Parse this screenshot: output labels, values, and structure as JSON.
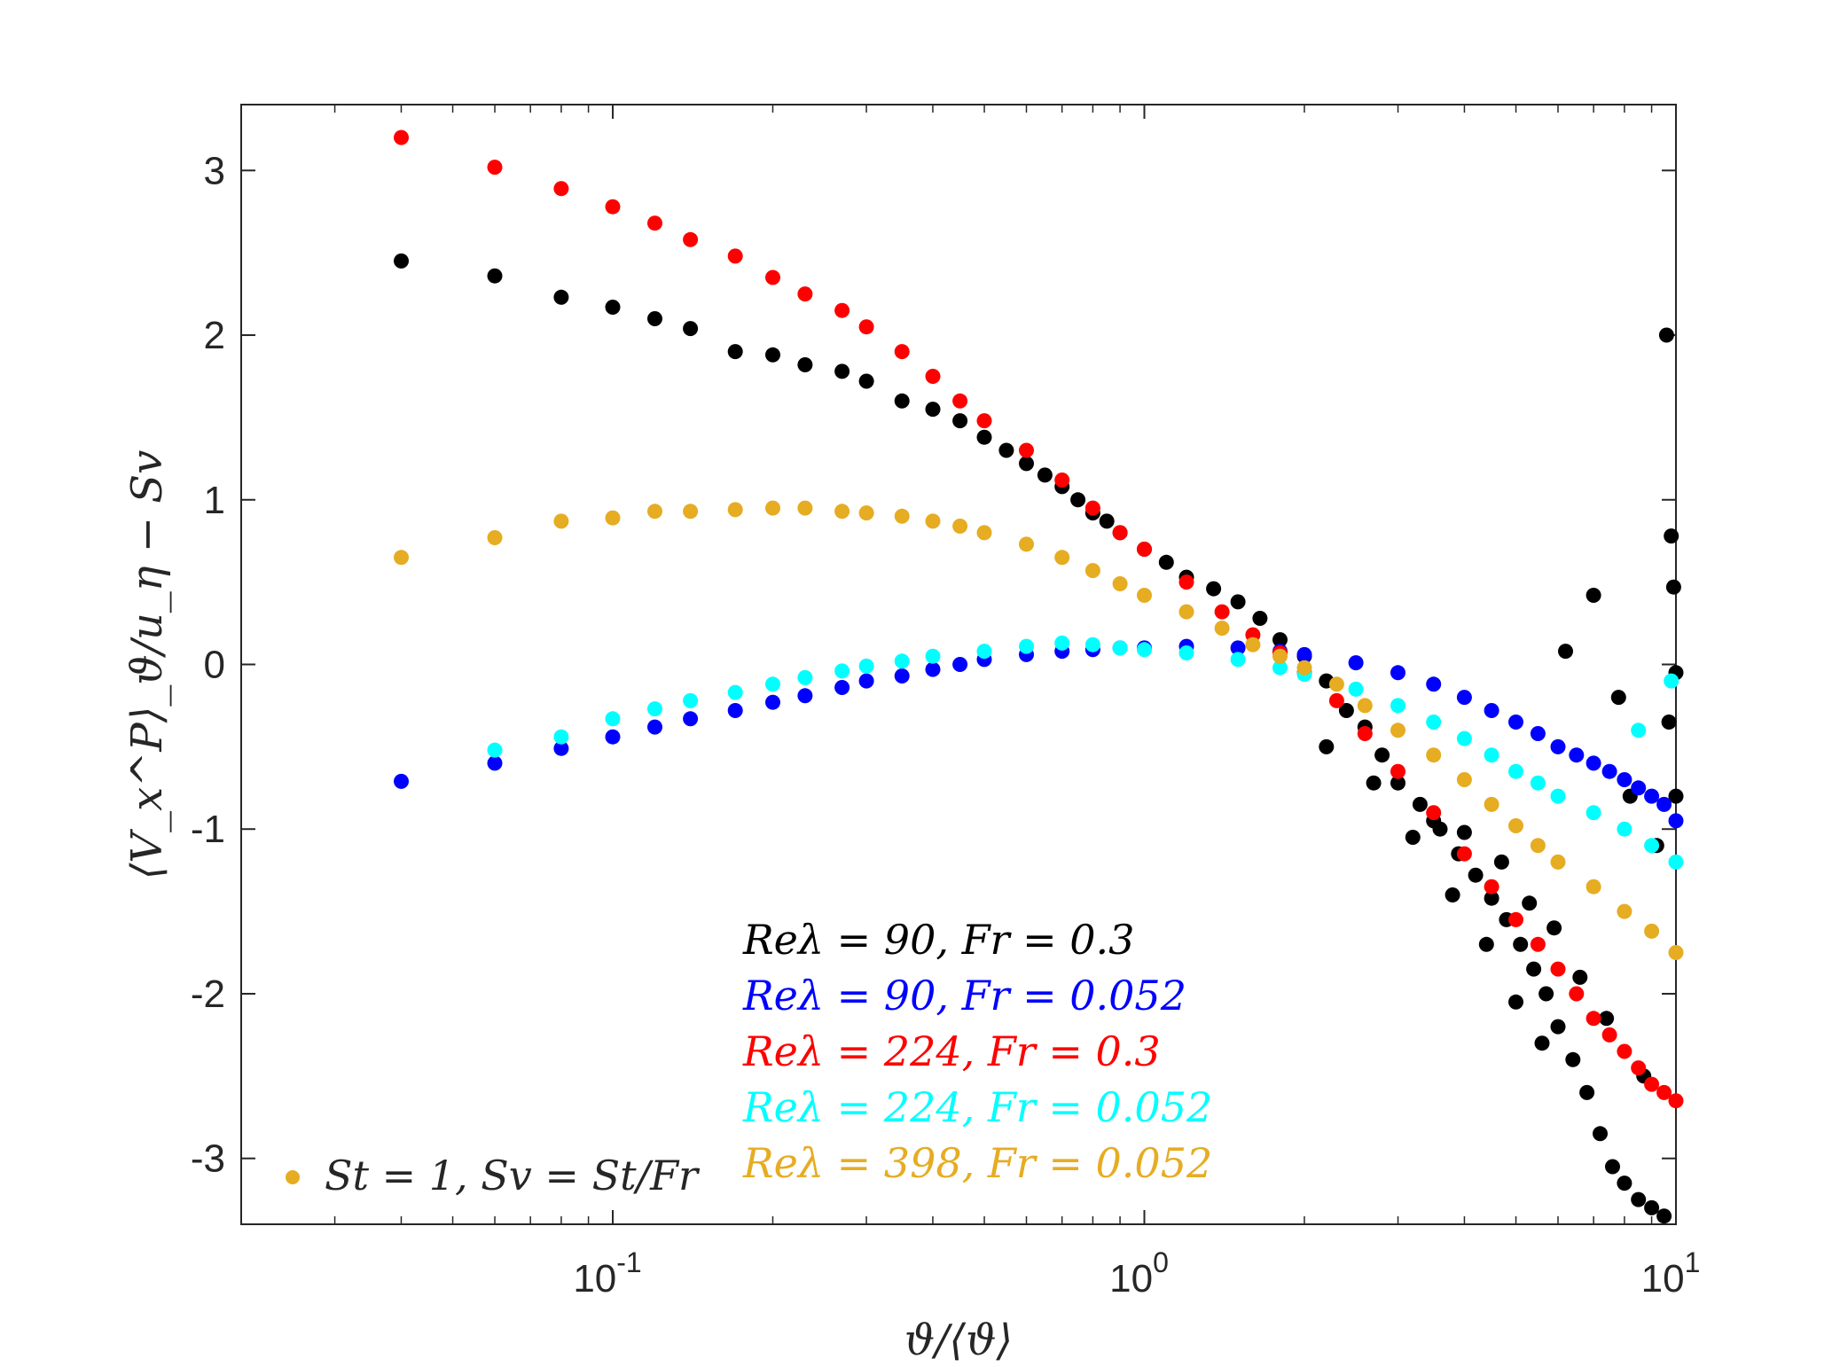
{
  "chart_data": {
    "type": "scatter",
    "xscale": "log",
    "xlim": [
      0.02,
      10
    ],
    "ylim": [
      -3.4,
      3.4
    ],
    "xticks": [
      {
        "value": 0.1,
        "label": "10",
        "exp": "-1"
      },
      {
        "value": 1,
        "label": "10",
        "exp": "0"
      },
      {
        "value": 10,
        "label": "10",
        "exp": "1"
      }
    ],
    "yticks": [
      {
        "value": 3,
        "label": "3"
      },
      {
        "value": 2,
        "label": "2"
      },
      {
        "value": 1,
        "label": "1"
      },
      {
        "value": 0,
        "label": "0"
      },
      {
        "value": -1,
        "label": "-1"
      },
      {
        "value": -2,
        "label": "-2"
      },
      {
        "value": -3,
        "label": "-3"
      }
    ],
    "xlabel": "ϑ/⟨ϑ⟩",
    "ylabel": "⟨V_x^P⟩_ϑ/u_η − Sv",
    "grid": false,
    "legend_placement": "bottom-right",
    "note": "St = 1, Sv = St/Fr",
    "note_color": "#E6AC22",
    "series": [
      {
        "name": "Reλ = 90, Fr = 0.3",
        "color": "#000000",
        "points": [
          [
            0.04,
            2.45
          ],
          [
            0.06,
            2.36
          ],
          [
            0.08,
            2.23
          ],
          [
            0.1,
            2.17
          ],
          [
            0.12,
            2.1
          ],
          [
            0.14,
            2.04
          ],
          [
            0.17,
            1.9
          ],
          [
            0.2,
            1.88
          ],
          [
            0.23,
            1.82
          ],
          [
            0.27,
            1.78
          ],
          [
            0.3,
            1.72
          ],
          [
            0.35,
            1.6
          ],
          [
            0.4,
            1.55
          ],
          [
            0.45,
            1.48
          ],
          [
            0.5,
            1.38
          ],
          [
            0.55,
            1.3
          ],
          [
            0.6,
            1.22
          ],
          [
            0.65,
            1.15
          ],
          [
            0.7,
            1.08
          ],
          [
            0.75,
            1.0
          ],
          [
            0.8,
            0.92
          ],
          [
            0.85,
            0.87
          ],
          [
            0.9,
            0.8
          ],
          [
            1.0,
            0.7
          ],
          [
            1.1,
            0.62
          ],
          [
            1.2,
            0.53
          ],
          [
            1.35,
            0.46
          ],
          [
            1.5,
            0.38
          ],
          [
            1.65,
            0.28
          ],
          [
            1.8,
            0.15
          ],
          [
            2.0,
            0.05
          ],
          [
            2.2,
            -0.1
          ],
          [
            2.4,
            -0.28
          ],
          [
            2.6,
            -0.38
          ],
          [
            2.8,
            -0.55
          ],
          [
            3.0,
            -0.72
          ],
          [
            3.3,
            -0.85
          ],
          [
            3.6,
            -1.0
          ],
          [
            3.9,
            -1.15
          ],
          [
            4.2,
            -1.28
          ],
          [
            4.5,
            -1.42
          ],
          [
            4.8,
            -1.55
          ],
          [
            5.1,
            -1.7
          ],
          [
            5.4,
            -1.85
          ],
          [
            5.7,
            -2.0
          ],
          [
            6.0,
            -2.2
          ],
          [
            6.4,
            -2.4
          ],
          [
            6.8,
            -2.6
          ],
          [
            7.2,
            -2.85
          ],
          [
            7.6,
            -3.05
          ],
          [
            8.0,
            -3.15
          ],
          [
            8.5,
            -3.25
          ],
          [
            9.0,
            -3.3
          ],
          [
            9.5,
            -3.35
          ],
          [
            9.6,
            2.0
          ],
          [
            9.8,
            0.78
          ],
          [
            2.2,
            -0.5
          ],
          [
            2.7,
            -0.72
          ],
          [
            3.2,
            -1.05
          ],
          [
            3.5,
            -0.95
          ],
          [
            3.8,
            -1.4
          ],
          [
            4.0,
            -1.02
          ],
          [
            4.4,
            -1.7
          ],
          [
            4.7,
            -1.2
          ],
          [
            5.0,
            -2.05
          ],
          [
            5.3,
            -1.45
          ],
          [
            5.6,
            -2.3
          ],
          [
            5.9,
            -1.6
          ],
          [
            6.2,
            0.08
          ],
          [
            6.6,
            -1.9
          ],
          [
            7.0,
            0.42
          ],
          [
            7.4,
            -2.15
          ],
          [
            7.8,
            -0.2
          ],
          [
            8.2,
            -0.8
          ],
          [
            8.7,
            -2.5
          ],
          [
            9.2,
            -1.1
          ],
          [
            9.7,
            -0.35
          ],
          [
            10.0,
            -0.05
          ],
          [
            10.0,
            -0.8
          ],
          [
            9.9,
            0.47
          ]
        ]
      },
      {
        "name": "Reλ = 90, Fr = 0.052",
        "color": "#0000FF",
        "points": [
          [
            0.04,
            -0.71
          ],
          [
            0.06,
            -0.6
          ],
          [
            0.08,
            -0.51
          ],
          [
            0.1,
            -0.44
          ],
          [
            0.12,
            -0.38
          ],
          [
            0.14,
            -0.33
          ],
          [
            0.17,
            -0.28
          ],
          [
            0.2,
            -0.23
          ],
          [
            0.23,
            -0.19
          ],
          [
            0.27,
            -0.14
          ],
          [
            0.3,
            -0.1
          ],
          [
            0.35,
            -0.07
          ],
          [
            0.4,
            -0.03
          ],
          [
            0.45,
            0.0
          ],
          [
            0.5,
            0.03
          ],
          [
            0.6,
            0.06
          ],
          [
            0.7,
            0.08
          ],
          [
            0.8,
            0.09
          ],
          [
            0.9,
            0.1
          ],
          [
            1.0,
            0.1
          ],
          [
            1.2,
            0.11
          ],
          [
            1.5,
            0.1
          ],
          [
            1.8,
            0.08
          ],
          [
            2.0,
            0.06
          ],
          [
            2.5,
            0.01
          ],
          [
            3.0,
            -0.05
          ],
          [
            3.5,
            -0.12
          ],
          [
            4.0,
            -0.2
          ],
          [
            4.5,
            -0.28
          ],
          [
            5.0,
            -0.35
          ],
          [
            5.5,
            -0.42
          ],
          [
            6.0,
            -0.5
          ],
          [
            6.5,
            -0.55
          ],
          [
            7.0,
            -0.6
          ],
          [
            7.5,
            -0.65
          ],
          [
            8.0,
            -0.7
          ],
          [
            8.5,
            -0.75
          ],
          [
            9.0,
            -0.8
          ],
          [
            9.5,
            -0.85
          ],
          [
            10.0,
            -0.95
          ]
        ]
      },
      {
        "name": "Reλ = 224, Fr = 0.3",
        "color": "#FF0000",
        "points": [
          [
            0.04,
            3.2
          ],
          [
            0.06,
            3.02
          ],
          [
            0.08,
            2.89
          ],
          [
            0.1,
            2.78
          ],
          [
            0.12,
            2.68
          ],
          [
            0.14,
            2.58
          ],
          [
            0.17,
            2.48
          ],
          [
            0.2,
            2.35
          ],
          [
            0.23,
            2.25
          ],
          [
            0.27,
            2.15
          ],
          [
            0.3,
            2.05
          ],
          [
            0.35,
            1.9
          ],
          [
            0.4,
            1.75
          ],
          [
            0.45,
            1.6
          ],
          [
            0.5,
            1.48
          ],
          [
            0.6,
            1.3
          ],
          [
            0.7,
            1.12
          ],
          [
            0.8,
            0.95
          ],
          [
            0.9,
            0.8
          ],
          [
            1.0,
            0.7
          ],
          [
            1.2,
            0.5
          ],
          [
            1.4,
            0.32
          ],
          [
            1.6,
            0.18
          ],
          [
            1.8,
            0.07
          ],
          [
            2.0,
            -0.05
          ],
          [
            2.3,
            -0.22
          ],
          [
            2.6,
            -0.42
          ],
          [
            3.0,
            -0.65
          ],
          [
            3.5,
            -0.9
          ],
          [
            4.0,
            -1.15
          ],
          [
            4.5,
            -1.35
          ],
          [
            5.0,
            -1.55
          ],
          [
            5.5,
            -1.7
          ],
          [
            6.0,
            -1.85
          ],
          [
            6.5,
            -2.0
          ],
          [
            7.0,
            -2.15
          ],
          [
            7.5,
            -2.25
          ],
          [
            8.0,
            -2.35
          ],
          [
            8.5,
            -2.45
          ],
          [
            9.0,
            -2.55
          ],
          [
            9.5,
            -2.6
          ],
          [
            10.0,
            -2.65
          ]
        ]
      },
      {
        "name": "Reλ = 224, Fr = 0.052",
        "color": "#00FFFF",
        "points": [
          [
            0.06,
            -0.52
          ],
          [
            0.08,
            -0.44
          ],
          [
            0.1,
            -0.33
          ],
          [
            0.12,
            -0.27
          ],
          [
            0.14,
            -0.22
          ],
          [
            0.17,
            -0.17
          ],
          [
            0.2,
            -0.12
          ],
          [
            0.23,
            -0.08
          ],
          [
            0.27,
            -0.04
          ],
          [
            0.3,
            -0.01
          ],
          [
            0.35,
            0.02
          ],
          [
            0.4,
            0.05
          ],
          [
            0.5,
            0.08
          ],
          [
            0.6,
            0.11
          ],
          [
            0.7,
            0.13
          ],
          [
            0.8,
            0.12
          ],
          [
            0.9,
            0.1
          ],
          [
            1.0,
            0.09
          ],
          [
            1.2,
            0.07
          ],
          [
            1.5,
            0.03
          ],
          [
            1.8,
            -0.02
          ],
          [
            2.0,
            -0.06
          ],
          [
            2.5,
            -0.15
          ],
          [
            3.0,
            -0.25
          ],
          [
            3.5,
            -0.35
          ],
          [
            4.0,
            -0.45
          ],
          [
            4.5,
            -0.55
          ],
          [
            5.0,
            -0.65
          ],
          [
            5.5,
            -0.72
          ],
          [
            6.0,
            -0.8
          ],
          [
            7.0,
            -0.9
          ],
          [
            8.0,
            -1.0
          ],
          [
            9.0,
            -1.1
          ],
          [
            10.0,
            -1.2
          ],
          [
            9.8,
            -0.1
          ],
          [
            8.5,
            -0.4
          ]
        ]
      },
      {
        "name": "Reλ = 398, Fr = 0.052",
        "color": "#E6AC22",
        "points": [
          [
            0.04,
            0.65
          ],
          [
            0.06,
            0.77
          ],
          [
            0.08,
            0.87
          ],
          [
            0.1,
            0.89
          ],
          [
            0.12,
            0.93
          ],
          [
            0.14,
            0.93
          ],
          [
            0.17,
            0.94
          ],
          [
            0.2,
            0.95
          ],
          [
            0.23,
            0.95
          ],
          [
            0.27,
            0.93
          ],
          [
            0.3,
            0.92
          ],
          [
            0.35,
            0.9
          ],
          [
            0.4,
            0.87
          ],
          [
            0.45,
            0.84
          ],
          [
            0.5,
            0.8
          ],
          [
            0.6,
            0.73
          ],
          [
            0.7,
            0.65
          ],
          [
            0.8,
            0.57
          ],
          [
            0.9,
            0.49
          ],
          [
            1.0,
            0.42
          ],
          [
            1.2,
            0.32
          ],
          [
            1.4,
            0.22
          ],
          [
            1.6,
            0.12
          ],
          [
            1.8,
            0.05
          ],
          [
            2.0,
            -0.02
          ],
          [
            2.3,
            -0.12
          ],
          [
            2.6,
            -0.25
          ],
          [
            3.0,
            -0.4
          ],
          [
            3.5,
            -0.55
          ],
          [
            4.0,
            -0.7
          ],
          [
            4.5,
            -0.85
          ],
          [
            5.0,
            -0.98
          ],
          [
            5.5,
            -1.1
          ],
          [
            6.0,
            -1.2
          ],
          [
            7.0,
            -1.35
          ],
          [
            8.0,
            -1.5
          ],
          [
            9.0,
            -1.62
          ],
          [
            10.0,
            -1.75
          ]
        ]
      }
    ]
  }
}
